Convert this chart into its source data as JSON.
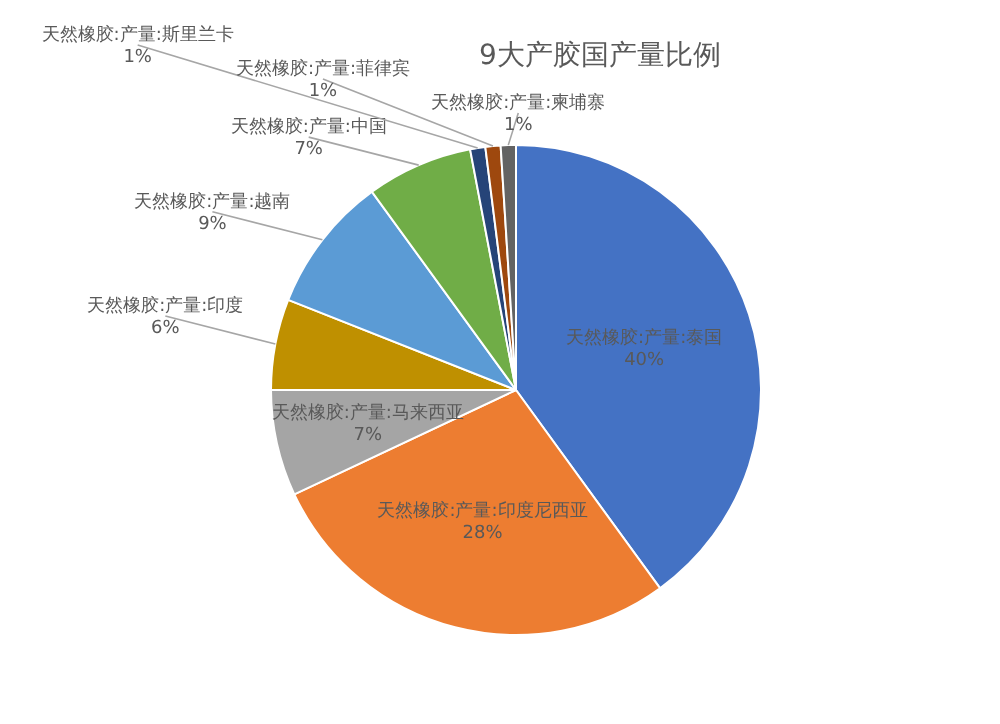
{
  "chart_data": {
    "type": "pie",
    "title": "9大产胶国产量比例",
    "categories": [
      "天然橡胶:产量:泰国",
      "天然橡胶:产量:印度尼西亚",
      "天然橡胶:产量:马来西亚",
      "天然橡胶:产量:印度",
      "天然橡胶:产量:越南",
      "天然橡胶:产量:中国",
      "天然橡胶:产量:斯里兰卡",
      "天然橡胶:产量:菲律宾",
      "天然橡胶:产量:柬埔寨"
    ],
    "values": [
      40,
      28,
      7,
      6,
      9,
      7,
      1,
      1,
      1
    ],
    "colors": [
      "#4472c4",
      "#ed7d31",
      "#a5a5a5",
      "#bf9000",
      "#5b9bd5",
      "#70ad47",
      "#264478",
      "#9e480e",
      "#636363"
    ],
    "value_labels": [
      "40%",
      "28%",
      "7%",
      "6%",
      "9%",
      "7%",
      "1%",
      "1%",
      "1%"
    ],
    "legend": false
  }
}
